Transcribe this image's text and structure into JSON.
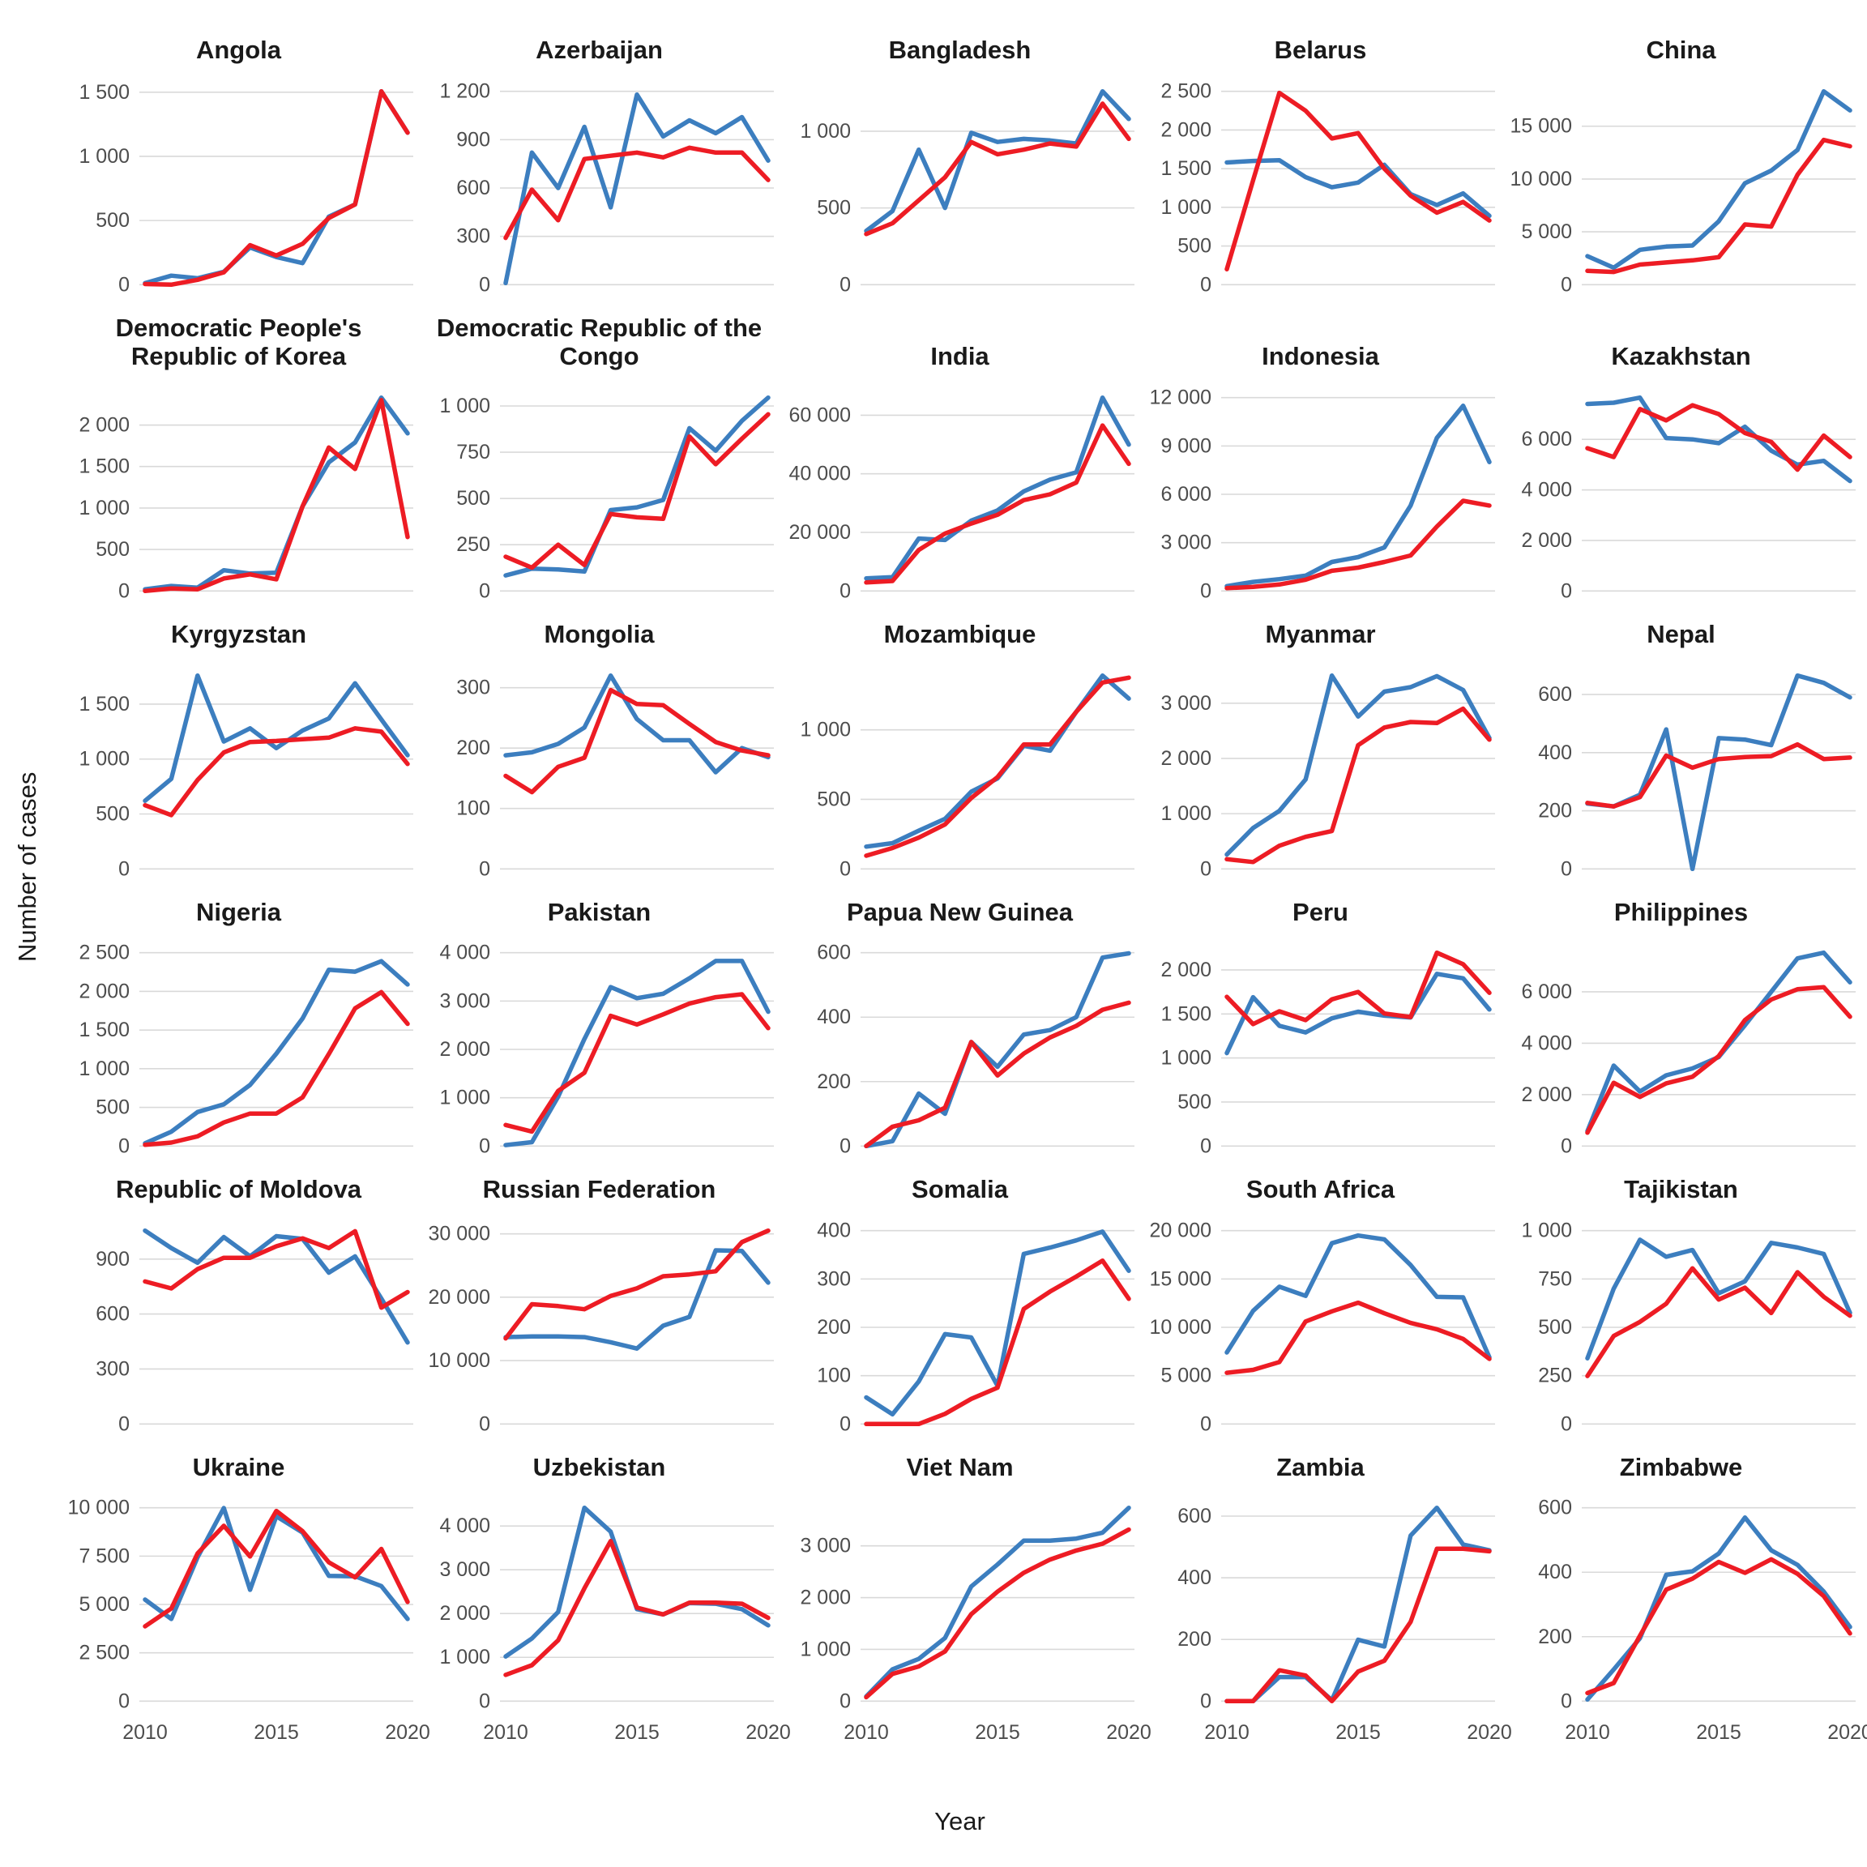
{
  "chart_data": {
    "type": "line",
    "title": "",
    "xlabel": "Year",
    "ylabel": "Number of cases",
    "x": [
      2010,
      2011,
      2012,
      2013,
      2014,
      2015,
      2016,
      2017,
      2018,
      2019,
      2020
    ],
    "x_ticks_shown": [
      2010,
      2015,
      2020
    ],
    "grid": "horizontal-only",
    "legend": "none",
    "series_colors": {
      "series1": "#3C7EBF",
      "series2": "#ED1C24"
    },
    "facets": [
      {
        "title": "Angola",
        "yticks": [
          0,
          500,
          1000,
          1500
        ],
        "series1": [
          12,
          70,
          50,
          100,
          290,
          215,
          168,
          530,
          625,
          1507,
          1185
        ],
        "series2": [
          5,
          0,
          38,
          96,
          308,
          227,
          318,
          520,
          625,
          1507,
          1185
        ]
      },
      {
        "title": "Azerbaijan",
        "yticks": [
          0,
          300,
          600,
          900,
          1200
        ],
        "series1": [
          10,
          820,
          600,
          980,
          480,
          1180,
          920,
          1020,
          940,
          1040,
          770
        ],
        "series2": [
          290,
          590,
          400,
          780,
          800,
          820,
          790,
          850,
          820,
          820,
          650
        ]
      },
      {
        "title": "Bangladesh",
        "yticks": [
          0,
          500,
          1000
        ],
        "series1": [
          350,
          480,
          880,
          500,
          990,
          930,
          950,
          940,
          920,
          1260,
          1080
        ],
        "series2": [
          330,
          400,
          550,
          700,
          930,
          850,
          880,
          920,
          900,
          1180,
          950
        ]
      },
      {
        "title": "Belarus",
        "yticks": [
          0,
          500,
          1000,
          1500,
          2000,
          2500
        ],
        "series1": [
          1580,
          1600,
          1610,
          1390,
          1260,
          1320,
          1550,
          1170,
          1030,
          1180,
          890
        ],
        "series2": [
          200,
          1350,
          2480,
          2250,
          1890,
          1960,
          1500,
          1150,
          930,
          1070,
          830
        ]
      },
      {
        "title": "China",
        "yticks": [
          0,
          5000,
          10000,
          15000
        ],
        "series1": [
          2700,
          1600,
          3300,
          3600,
          3700,
          6000,
          9600,
          10800,
          12750,
          18300,
          16500
        ],
        "series2": [
          1300,
          1200,
          1900,
          2100,
          2300,
          2600,
          5700,
          5500,
          10400,
          13700,
          13100
        ]
      },
      {
        "title": "Democratic People's Republic of Korea",
        "yticks": [
          0,
          500,
          1000,
          1500,
          2000
        ],
        "series1": [
          20,
          60,
          40,
          250,
          210,
          220,
          1020,
          1550,
          1790,
          2330,
          1900
        ],
        "series2": [
          0,
          30,
          20,
          150,
          200,
          140,
          1020,
          1730,
          1470,
          2300,
          650
        ]
      },
      {
        "title": "Democratic Republic of the Congo",
        "yticks": [
          0,
          250,
          500,
          750,
          1000
        ],
        "series1": [
          84,
          121,
          116,
          105,
          437,
          452,
          492,
          880,
          758,
          920,
          1045
        ],
        "series2": [
          185,
          126,
          250,
          140,
          416,
          398,
          390,
          835,
          685,
          823,
          955
        ]
      },
      {
        "title": "India",
        "yticks": [
          0,
          20000,
          40000,
          60000
        ],
        "series1": [
          4300,
          4700,
          17900,
          17400,
          24000,
          27500,
          34000,
          38000,
          40500,
          66000,
          50000
        ],
        "series2": [
          2900,
          3400,
          14000,
          19600,
          23000,
          26000,
          31000,
          33000,
          37000,
          56500,
          43400
        ]
      },
      {
        "title": "Indonesia",
        "yticks": [
          0,
          3000,
          6000,
          9000,
          12000
        ],
        "series1": [
          300,
          560,
          735,
          950,
          1800,
          2100,
          2700,
          5300,
          9500,
          11500,
          8000
        ],
        "series2": [
          175,
          250,
          400,
          700,
          1250,
          1450,
          1800,
          2200,
          4000,
          5600,
          5300
        ]
      },
      {
        "title": "Kazakhstan",
        "yticks": [
          0,
          2000,
          4000,
          6000
        ],
        "series1": [
          7400,
          7450,
          7650,
          6050,
          6000,
          5850,
          6500,
          5550,
          5000,
          5150,
          4350
        ],
        "series2": [
          5650,
          5300,
          7200,
          6750,
          7350,
          7000,
          6250,
          5900,
          4800,
          6150,
          5300
        ]
      },
      {
        "title": "Kyrgyzstan",
        "yticks": [
          0,
          500,
          1000,
          1500
        ],
        "series1": [
          620,
          820,
          1760,
          1160,
          1280,
          1100,
          1260,
          1370,
          1690,
          1360,
          1035
        ],
        "series2": [
          580,
          490,
          810,
          1060,
          1155,
          1165,
          1180,
          1195,
          1280,
          1250,
          955
        ]
      },
      {
        "title": "Mongolia",
        "yticks": [
          0,
          100,
          200,
          300
        ],
        "series1": [
          188,
          193,
          207,
          234,
          320,
          248,
          213,
          213,
          160,
          200,
          185
        ],
        "series2": [
          154,
          127,
          169,
          184,
          296,
          273,
          271,
          240,
          210,
          196,
          188
        ]
      },
      {
        "title": "Mozambique",
        "yticks": [
          0,
          500,
          1000
        ],
        "series1": [
          160,
          185,
          275,
          360,
          555,
          650,
          885,
          850,
          1130,
          1390,
          1225
        ],
        "series2": [
          95,
          150,
          225,
          320,
          510,
          660,
          895,
          895,
          1130,
          1340,
          1375
        ]
      },
      {
        "title": "Myanmar",
        "yticks": [
          0,
          1000,
          2000,
          3000
        ],
        "series1": [
          260,
          740,
          1050,
          1620,
          3500,
          2760,
          3210,
          3290,
          3490,
          3240,
          2370
        ],
        "series2": [
          175,
          125,
          420,
          580,
          685,
          2240,
          2560,
          2660,
          2640,
          2900,
          2340
        ]
      },
      {
        "title": "Nepal",
        "yticks": [
          0,
          200,
          400,
          600
        ],
        "series1": [
          225,
          215,
          255,
          480,
          0,
          450,
          445,
          426,
          665,
          640,
          590
        ],
        "series2": [
          227,
          215,
          247,
          390,
          348,
          378,
          385,
          388,
          428,
          378,
          383
        ]
      },
      {
        "title": "Nigeria",
        "yticks": [
          0,
          500,
          1000,
          1500,
          2000,
          2500
        ],
        "series1": [
          35,
          185,
          440,
          540,
          790,
          1195,
          1650,
          2280,
          2255,
          2390,
          2090
        ],
        "series2": [
          15,
          45,
          125,
          305,
          420,
          420,
          630,
          1190,
          1780,
          1990,
          1580
        ]
      },
      {
        "title": "Pakistan",
        "yticks": [
          0,
          1000,
          2000,
          3000,
          4000
        ],
        "series1": [
          20,
          80,
          1020,
          2215,
          3290,
          3060,
          3150,
          3470,
          3830,
          3830,
          2780
        ],
        "series2": [
          435,
          300,
          1140,
          1515,
          2695,
          2515,
          2725,
          2950,
          3080,
          3140,
          2440
        ]
      },
      {
        "title": "Papua New Guinea",
        "yticks": [
          0,
          200,
          400,
          600
        ],
        "series1": [
          0,
          15,
          163,
          100,
          323,
          246,
          346,
          360,
          400,
          585,
          598
        ],
        "series2": [
          0,
          60,
          80,
          119,
          323,
          219,
          287,
          337,
          373,
          423,
          445
        ]
      },
      {
        "title": "Peru",
        "yticks": [
          0,
          500,
          1000,
          1500,
          2000
        ],
        "series1": [
          1055,
          1690,
          1365,
          1290,
          1450,
          1525,
          1480,
          1460,
          1955,
          1905,
          1550
        ],
        "series2": [
          1695,
          1385,
          1530,
          1430,
          1665,
          1750,
          1505,
          1465,
          2195,
          2065,
          1740
        ]
      },
      {
        "title": "Philippines",
        "yticks": [
          0,
          2000,
          4000,
          6000
        ],
        "series1": [
          580,
          3130,
          2120,
          2750,
          3020,
          3460,
          4700,
          6000,
          7300,
          7520,
          6370
        ],
        "series2": [
          520,
          2460,
          1910,
          2440,
          2695,
          3500,
          4900,
          5700,
          6100,
          6180,
          5030
        ]
      },
      {
        "title": "Republic of Moldova",
        "yticks": [
          0,
          300,
          600,
          900
        ],
        "series1": [
          1055,
          960,
          880,
          1020,
          915,
          1025,
          1010,
          826,
          915,
          685,
          445
        ],
        "series2": [
          778,
          740,
          845,
          907,
          907,
          970,
          1013,
          960,
          1052,
          635,
          720
        ]
      },
      {
        "title": "Russian Federation",
        "yticks": [
          0,
          10000,
          20000,
          30000
        ],
        "series1": [
          13700,
          13800,
          13800,
          13700,
          12900,
          11900,
          15500,
          16900,
          27400,
          27300,
          22300
        ],
        "series2": [
          13500,
          18900,
          18600,
          18100,
          20200,
          21400,
          23300,
          23600,
          24100,
          28700,
          30500
        ]
      },
      {
        "title": "Somalia",
        "yticks": [
          0,
          100,
          200,
          300,
          400
        ],
        "series1": [
          55,
          20,
          88,
          186,
          179,
          79,
          352,
          365,
          380,
          398,
          317
        ],
        "series2": [
          0,
          0,
          0,
          21,
          52,
          75,
          238,
          274,
          305,
          338,
          259
        ]
      },
      {
        "title": "South Africa",
        "yticks": [
          0,
          5000,
          10000,
          15000,
          20000
        ],
        "series1": [
          7400,
          11700,
          14200,
          13250,
          18700,
          19500,
          19100,
          16450,
          13150,
          13100,
          6900
        ],
        "series2": [
          5300,
          5600,
          6400,
          10600,
          11650,
          12550,
          11450,
          10450,
          9800,
          8800,
          6730
        ]
      },
      {
        "title": "Tajikistan",
        "yticks": [
          0,
          250,
          500,
          750,
          1000
        ],
        "series1": [
          340,
          700,
          953,
          865,
          900,
          676,
          738,
          937,
          913,
          880,
          575
        ],
        "series2": [
          248,
          455,
          528,
          622,
          805,
          644,
          705,
          574,
          785,
          658,
          560
        ]
      },
      {
        "title": "Ukraine",
        "yticks": [
          0,
          2500,
          5000,
          7500,
          10000
        ],
        "series1": [
          5250,
          4250,
          7440,
          9990,
          5760,
          9560,
          8720,
          6480,
          6460,
          5950,
          4250
        ],
        "series2": [
          3870,
          4790,
          7640,
          9070,
          7480,
          9840,
          8790,
          7180,
          6400,
          7870,
          5130
        ]
      },
      {
        "title": "Uzbekistan",
        "yticks": [
          0,
          1000,
          2000,
          3000,
          4000
        ],
        "series1": [
          1020,
          1430,
          2035,
          4415,
          3870,
          2100,
          1980,
          2240,
          2225,
          2100,
          1730
        ],
        "series2": [
          600,
          820,
          1390,
          2575,
          3655,
          2135,
          1980,
          2250,
          2250,
          2225,
          1900
        ]
      },
      {
        "title": "Viet Nam",
        "yticks": [
          0,
          1000,
          2000,
          3000
        ],
        "series1": [
          90,
          615,
          815,
          1220,
          2215,
          2640,
          3100,
          3100,
          3140,
          3255,
          3735
        ],
        "series2": [
          75,
          525,
          670,
          960,
          1680,
          2115,
          2480,
          2735,
          2910,
          3040,
          3315
        ]
      },
      {
        "title": "Zambia",
        "yticks": [
          0,
          200,
          400,
          600
        ],
        "series1": [
          0,
          0,
          78,
          78,
          3,
          199,
          177,
          537,
          627,
          508,
          489
        ],
        "series2": [
          0,
          0,
          100,
          83,
          0,
          96,
          131,
          257,
          494,
          494,
          486
        ]
      },
      {
        "title": "Zimbabwe",
        "yticks": [
          0,
          200,
          400,
          600
        ],
        "series1": [
          5,
          98,
          195,
          392,
          403,
          458,
          570,
          468,
          423,
          340,
          230
        ],
        "series2": [
          25,
          56,
          203,
          346,
          380,
          432,
          398,
          440,
          395,
          326,
          210
        ]
      }
    ]
  },
  "layout": {
    "columns": 5,
    "grid_color": "#D9D9D9",
    "tick_color": "#4D4D4D",
    "title_color": "#1a1a1a"
  }
}
